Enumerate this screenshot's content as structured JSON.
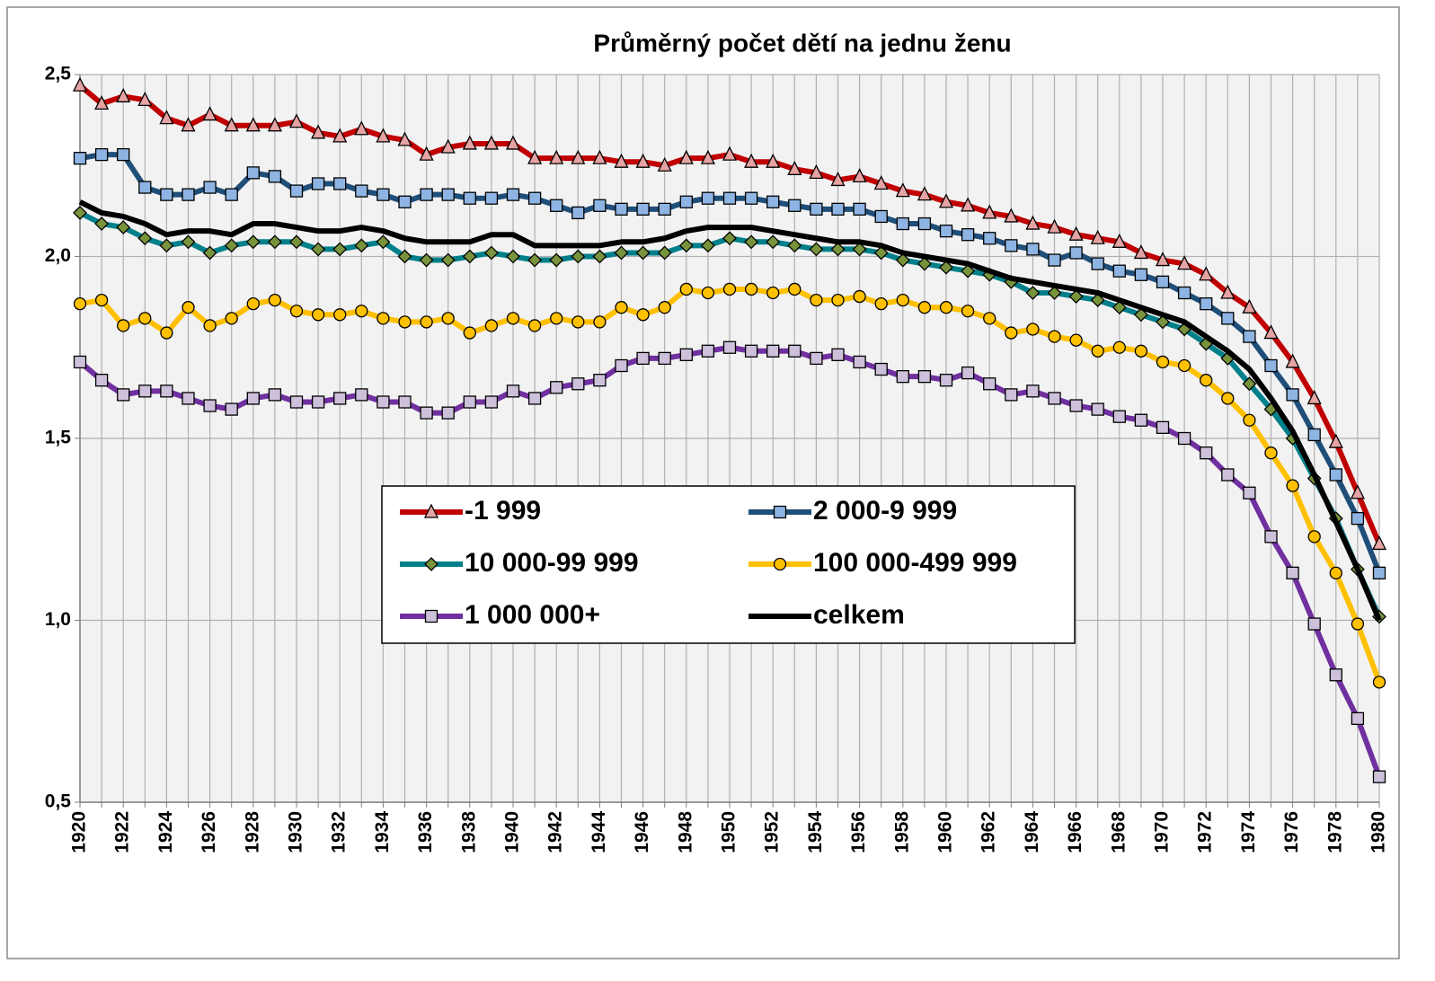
{
  "chart_data": {
    "type": "line",
    "title": "Průměrný počet dětí na jednu ženu",
    "categories": [
      "1920",
      null,
      "1922",
      null,
      "1924",
      null,
      "1926",
      null,
      "1928",
      null,
      "1930",
      null,
      "1932",
      null,
      "1934",
      null,
      "1936",
      null,
      "1938",
      null,
      "1940",
      null,
      "1942",
      null,
      "1944",
      null,
      "1946",
      null,
      "1948",
      null,
      "1950",
      null,
      "1952",
      null,
      "1954",
      null,
      "1956",
      null,
      "1958",
      null,
      "1960",
      null,
      "1962",
      null,
      "1964",
      null,
      "1966",
      null,
      "1968",
      null,
      "1970",
      null,
      "1972",
      null,
      "1974",
      null,
      "1976",
      null,
      "1978",
      null,
      "1980"
    ],
    "ylim": [
      0.5,
      2.5
    ],
    "yticks": [
      {
        "value": 0.5,
        "label": "0,5"
      },
      {
        "value": 1.0,
        "label": "1,0"
      },
      {
        "value": 1.5,
        "label": "1,5"
      },
      {
        "value": 2.0,
        "label": "2,0"
      },
      {
        "value": 2.5,
        "label": "2,5"
      }
    ],
    "grid": true,
    "legend": "center",
    "series": [
      {
        "name": "-1 999",
        "color": "#c00000",
        "marker": "triangle",
        "marker_color": "#e6a3a3",
        "values": [
          2.47,
          2.42,
          2.44,
          2.43,
          2.38,
          2.36,
          2.39,
          2.36,
          2.36,
          2.36,
          2.37,
          2.34,
          2.33,
          2.35,
          2.33,
          2.32,
          2.28,
          2.3,
          2.31,
          2.31,
          2.31,
          2.27,
          2.27,
          2.27,
          2.27,
          2.26,
          2.26,
          2.25,
          2.27,
          2.27,
          2.28,
          2.26,
          2.26,
          2.24,
          2.23,
          2.21,
          2.22,
          2.2,
          2.18,
          2.17,
          2.15,
          2.14,
          2.12,
          2.11,
          2.09,
          2.08,
          2.06,
          2.05,
          2.04,
          2.01,
          1.99,
          1.98,
          1.95,
          1.9,
          1.86,
          1.79,
          1.71,
          1.61,
          1.49,
          1.35,
          1.21
        ]
      },
      {
        "name": "2 000-9 999",
        "color": "#1f4e79",
        "marker": "square",
        "marker_color": "#8db4e2",
        "values": [
          2.27,
          2.28,
          2.28,
          2.19,
          2.17,
          2.17,
          2.19,
          2.17,
          2.23,
          2.22,
          2.18,
          2.2,
          2.2,
          2.18,
          2.17,
          2.15,
          2.17,
          2.17,
          2.16,
          2.16,
          2.17,
          2.16,
          2.14,
          2.12,
          2.14,
          2.13,
          2.13,
          2.13,
          2.15,
          2.16,
          2.16,
          2.16,
          2.15,
          2.14,
          2.13,
          2.13,
          2.13,
          2.11,
          2.09,
          2.09,
          2.07,
          2.06,
          2.05,
          2.03,
          2.02,
          1.99,
          2.01,
          1.98,
          1.96,
          1.95,
          1.93,
          1.9,
          1.87,
          1.83,
          1.78,
          1.7,
          1.62,
          1.51,
          1.4,
          1.28,
          1.13
        ]
      },
      {
        "name": "10 000-99 999",
        "color": "#00808a",
        "marker": "diamond",
        "marker_color": "#77933c",
        "values": [
          2.12,
          2.09,
          2.08,
          2.05,
          2.03,
          2.04,
          2.01,
          2.03,
          2.04,
          2.04,
          2.04,
          2.02,
          2.02,
          2.03,
          2.04,
          2.0,
          1.99,
          1.99,
          2.0,
          2.01,
          2.0,
          1.99,
          1.99,
          2.0,
          2.0,
          2.01,
          2.01,
          2.01,
          2.03,
          2.03,
          2.05,
          2.04,
          2.04,
          2.03,
          2.02,
          2.02,
          2.02,
          2.01,
          1.99,
          1.98,
          1.97,
          1.96,
          1.95,
          1.93,
          1.9,
          1.9,
          1.89,
          1.88,
          1.86,
          1.84,
          1.82,
          1.8,
          1.76,
          1.72,
          1.65,
          1.58,
          1.5,
          1.39,
          1.28,
          1.14,
          1.01
        ]
      },
      {
        "name": "100 000-499 999",
        "color": "#ffc000",
        "marker": "circle",
        "marker_color": "#ffc000",
        "values": [
          1.87,
          1.88,
          1.81,
          1.83,
          1.79,
          1.86,
          1.81,
          1.83,
          1.87,
          1.88,
          1.85,
          1.84,
          1.84,
          1.85,
          1.83,
          1.82,
          1.82,
          1.83,
          1.79,
          1.81,
          1.83,
          1.81,
          1.83,
          1.82,
          1.82,
          1.86,
          1.84,
          1.86,
          1.91,
          1.9,
          1.91,
          1.91,
          1.9,
          1.91,
          1.88,
          1.88,
          1.89,
          1.87,
          1.88,
          1.86,
          1.86,
          1.85,
          1.83,
          1.79,
          1.8,
          1.78,
          1.77,
          1.74,
          1.75,
          1.74,
          1.71,
          1.7,
          1.66,
          1.61,
          1.55,
          1.46,
          1.37,
          1.23,
          1.13,
          0.99,
          0.83
        ]
      },
      {
        "name": "1 000 000+",
        "color": "#7030a0",
        "marker": "square",
        "marker_color": "#ccc0da",
        "values": [
          1.71,
          1.66,
          1.62,
          1.63,
          1.63,
          1.61,
          1.59,
          1.58,
          1.61,
          1.62,
          1.6,
          1.6,
          1.61,
          1.62,
          1.6,
          1.6,
          1.57,
          1.57,
          1.6,
          1.6,
          1.63,
          1.61,
          1.64,
          1.65,
          1.66,
          1.7,
          1.72,
          1.72,
          1.73,
          1.74,
          1.75,
          1.74,
          1.74,
          1.74,
          1.72,
          1.73,
          1.71,
          1.69,
          1.67,
          1.67,
          1.66,
          1.68,
          1.65,
          1.62,
          1.63,
          1.61,
          1.59,
          1.58,
          1.56,
          1.55,
          1.53,
          1.5,
          1.46,
          1.4,
          1.35,
          1.23,
          1.13,
          0.99,
          0.85,
          0.73,
          0.57
        ]
      },
      {
        "name": "celkem",
        "color": "#000000",
        "marker": "none",
        "values": [
          2.15,
          2.12,
          2.11,
          2.09,
          2.06,
          2.07,
          2.07,
          2.06,
          2.09,
          2.09,
          2.08,
          2.07,
          2.07,
          2.08,
          2.07,
          2.05,
          2.04,
          2.04,
          2.04,
          2.06,
          2.06,
          2.03,
          2.03,
          2.03,
          2.03,
          2.04,
          2.04,
          2.05,
          2.07,
          2.08,
          2.08,
          2.08,
          2.07,
          2.06,
          2.05,
          2.04,
          2.04,
          2.03,
          2.01,
          2.0,
          1.99,
          1.98,
          1.96,
          1.94,
          1.93,
          1.92,
          1.91,
          1.9,
          1.88,
          1.86,
          1.84,
          1.82,
          1.78,
          1.74,
          1.69,
          1.61,
          1.52,
          1.4,
          1.27,
          1.14,
          1.0
        ]
      }
    ]
  }
}
